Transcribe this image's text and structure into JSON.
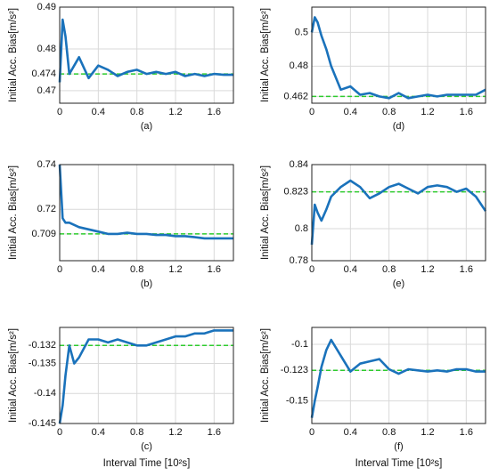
{
  "chart_data": [
    {
      "type": "line",
      "caption": "(a)",
      "ylabel": "Initial Acc. Bias[m/s²]",
      "color": "#1a72bb",
      "reference": 0.474,
      "reference_color": "#2ecc2e",
      "x": [
        0,
        0.03,
        0.06,
        0.1,
        0.15,
        0.2,
        0.3,
        0.4,
        0.5,
        0.6,
        0.7,
        0.8,
        0.9,
        1.0,
        1.1,
        1.2,
        1.3,
        1.4,
        1.5,
        1.6,
        1.7,
        1.8
      ],
      "values": [
        0.472,
        0.487,
        0.483,
        0.474,
        0.476,
        0.478,
        0.473,
        0.476,
        0.475,
        0.4735,
        0.4745,
        0.475,
        0.474,
        0.4745,
        0.474,
        0.4745,
        0.4735,
        0.474,
        0.4735,
        0.474,
        0.4738,
        0.4738
      ],
      "xlim": [
        0,
        1.8
      ],
      "xticks": [
        0,
        0.4,
        0.8,
        1.2,
        1.6
      ],
      "ylim": [
        0.467,
        0.49
      ],
      "yticks": [
        0.47,
        0.474,
        0.48,
        0.49
      ],
      "grid": true
    },
    {
      "type": "line",
      "caption": "(d)",
      "ylabel": "Initial Acc. Bias[m/s²]",
      "color": "#1a72bb",
      "reference": 0.462,
      "reference_color": "#2ecc2e",
      "x": [
        0,
        0.03,
        0.06,
        0.1,
        0.15,
        0.2,
        0.3,
        0.4,
        0.5,
        0.6,
        0.7,
        0.8,
        0.9,
        1.0,
        1.1,
        1.2,
        1.3,
        1.4,
        1.5,
        1.6,
        1.7,
        1.8
      ],
      "values": [
        0.5,
        0.509,
        0.506,
        0.498,
        0.49,
        0.48,
        0.466,
        0.468,
        0.463,
        0.464,
        0.462,
        0.461,
        0.464,
        0.461,
        0.462,
        0.463,
        0.462,
        0.463,
        0.463,
        0.463,
        0.463,
        0.466
      ],
      "xlim": [
        0,
        1.8
      ],
      "xticks": [
        0,
        0.4,
        0.8,
        1.2,
        1.6
      ],
      "ylim": [
        0.458,
        0.515
      ],
      "yticks": [
        0.462,
        0.48,
        0.5
      ],
      "grid": true
    },
    {
      "type": "line",
      "caption": "(b)",
      "ylabel": "Initial Acc. Bias[m/s²]",
      "color": "#1a72bb",
      "reference": 0.709,
      "reference_color": "#2ecc2e",
      "x": [
        0,
        0.03,
        0.06,
        0.1,
        0.15,
        0.2,
        0.3,
        0.4,
        0.5,
        0.6,
        0.7,
        0.8,
        0.9,
        1.0,
        1.1,
        1.2,
        1.3,
        1.4,
        1.5,
        1.6,
        1.7,
        1.8
      ],
      "values": [
        0.74,
        0.716,
        0.714,
        0.714,
        0.713,
        0.712,
        0.711,
        0.71,
        0.709,
        0.709,
        0.7095,
        0.709,
        0.709,
        0.7085,
        0.7085,
        0.708,
        0.708,
        0.7075,
        0.707,
        0.707,
        0.707,
        0.707
      ],
      "xlim": [
        0,
        1.8
      ],
      "xticks": [
        0,
        0.4,
        0.8,
        1.2,
        1.6
      ],
      "ylim": [
        0.697,
        0.74
      ],
      "yticks": [
        0.709,
        0.72,
        0.74
      ],
      "grid": true
    },
    {
      "type": "line",
      "caption": "(e)",
      "ylabel": "Initial Acc. Bias[m/s²]",
      "color": "#1a72bb",
      "reference": 0.823,
      "reference_color": "#2ecc2e",
      "x": [
        0,
        0.03,
        0.06,
        0.1,
        0.15,
        0.2,
        0.3,
        0.4,
        0.5,
        0.6,
        0.7,
        0.8,
        0.9,
        1.0,
        1.1,
        1.2,
        1.3,
        1.4,
        1.5,
        1.6,
        1.7,
        1.8
      ],
      "values": [
        0.79,
        0.815,
        0.81,
        0.805,
        0.812,
        0.82,
        0.826,
        0.83,
        0.826,
        0.819,
        0.822,
        0.826,
        0.828,
        0.825,
        0.822,
        0.826,
        0.827,
        0.826,
        0.823,
        0.825,
        0.82,
        0.811
      ],
      "xlim": [
        0,
        1.8
      ],
      "xticks": [
        0,
        0.4,
        0.8,
        1.2,
        1.6
      ],
      "ylim": [
        0.78,
        0.84
      ],
      "yticks": [
        0.78,
        0.8,
        0.823,
        0.84
      ],
      "grid": true
    },
    {
      "type": "line",
      "caption": "(c)",
      "ylabel": "Initial Acc. Bias[m/s²]",
      "xlabel": "Interval Time [10²s]",
      "color": "#1a72bb",
      "reference": -0.132,
      "reference_color": "#2ecc2e",
      "x": [
        0,
        0.03,
        0.06,
        0.1,
        0.15,
        0.2,
        0.3,
        0.4,
        0.5,
        0.6,
        0.7,
        0.8,
        0.9,
        1.0,
        1.1,
        1.2,
        1.3,
        1.4,
        1.5,
        1.6,
        1.7,
        1.8
      ],
      "values": [
        -0.145,
        -0.142,
        -0.137,
        -0.132,
        -0.135,
        -0.134,
        -0.131,
        -0.131,
        -0.1315,
        -0.131,
        -0.1315,
        -0.132,
        -0.132,
        -0.1315,
        -0.131,
        -0.1305,
        -0.1305,
        -0.13,
        -0.13,
        -0.1295,
        -0.1295,
        -0.1295
      ],
      "xlim": [
        0,
        1.8
      ],
      "xticks": [
        0,
        0.4,
        0.8,
        1.2,
        1.6
      ],
      "ylim": [
        -0.145,
        -0.129
      ],
      "yticks": [
        -0.145,
        -0.14,
        -0.135,
        -0.132
      ],
      "grid": true
    },
    {
      "type": "line",
      "caption": "(f)",
      "ylabel": "Initial Acc. Bias[m/s²]",
      "xlabel": "Interval Time [10²s]",
      "color": "#1a72bb",
      "reference": -0.123,
      "reference_color": "#2ecc2e",
      "x": [
        0,
        0.03,
        0.06,
        0.1,
        0.15,
        0.2,
        0.3,
        0.4,
        0.5,
        0.6,
        0.7,
        0.8,
        0.9,
        1.0,
        1.1,
        1.2,
        1.3,
        1.4,
        1.5,
        1.6,
        1.7,
        1.8
      ],
      "values": [
        -0.165,
        -0.15,
        -0.138,
        -0.12,
        -0.105,
        -0.096,
        -0.11,
        -0.124,
        -0.117,
        -0.115,
        -0.113,
        -0.122,
        -0.126,
        -0.122,
        -0.123,
        -0.124,
        -0.123,
        -0.124,
        -0.122,
        -0.122,
        -0.124,
        -0.124
      ],
      "xlim": [
        0,
        1.8
      ],
      "xticks": [
        0,
        0.4,
        0.8,
        1.2,
        1.6
      ],
      "ylim": [
        -0.17,
        -0.085
      ],
      "yticks": [
        -0.15,
        -0.123,
        -0.1
      ],
      "grid": true
    }
  ]
}
